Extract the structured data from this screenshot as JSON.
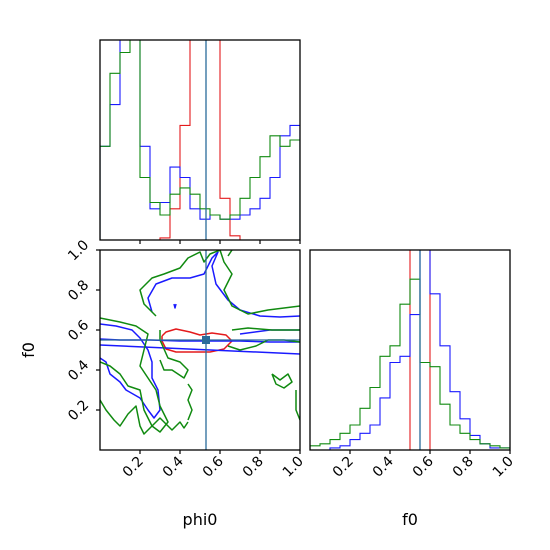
{
  "chart_data": {
    "type": "corner",
    "parameters": [
      "phi0",
      "f0"
    ],
    "truth": {
      "phi0": 0.53,
      "f0": 0.55
    },
    "colors": {
      "red": "#e41a1c",
      "blue": "#1a1aff",
      "green": "#108a10",
      "truth": "#2a6b9a"
    },
    "xlabel_phi0": "phi0",
    "xlabel_f0": "f0",
    "ylabel_f0": "f0",
    "range": [
      0.0,
      1.0
    ],
    "ticks": [
      0.2,
      0.4,
      0.6,
      0.8,
      1.0
    ],
    "tick_labels": [
      "0.2",
      "0.4",
      "0.6",
      "0.8",
      "1.0"
    ],
    "marginal_phi0": {
      "bin_edges": [
        0.0,
        0.05,
        0.1,
        0.15,
        0.2,
        0.25,
        0.3,
        0.35,
        0.4,
        0.45,
        0.5,
        0.55,
        0.6,
        0.65,
        0.7,
        0.75,
        0.8,
        0.85,
        0.9,
        0.95,
        1.0
      ],
      "series": [
        {
          "color": "red",
          "values": [
            0.0,
            0.0,
            0.0,
            0.0,
            0.0,
            0.0,
            0.01,
            0.15,
            0.55,
            1.05,
            1.05,
            1.05,
            0.2,
            0.02,
            0.0,
            0.0,
            0.0,
            0.0,
            0.0,
            0.0
          ]
        },
        {
          "color": "blue",
          "values": [
            0.45,
            0.65,
            1.05,
            1.05,
            0.45,
            0.15,
            0.18,
            0.35,
            0.3,
            0.15,
            0.1,
            0.12,
            0.1,
            0.1,
            0.12,
            0.15,
            0.2,
            0.3,
            0.5,
            0.55
          ]
        },
        {
          "color": "green",
          "values": [
            0.45,
            0.8,
            0.9,
            1.05,
            0.3,
            0.18,
            0.12,
            0.22,
            0.25,
            0.22,
            0.15,
            0.12,
            0.1,
            0.12,
            0.2,
            0.3,
            0.4,
            0.5,
            0.45,
            0.48
          ]
        }
      ]
    },
    "marginal_f0": {
      "bin_edges": [
        0.0,
        0.05,
        0.1,
        0.15,
        0.2,
        0.25,
        0.3,
        0.35,
        0.4,
        0.45,
        0.5,
        0.55,
        0.6,
        0.65,
        0.7,
        0.75,
        0.8,
        0.85,
        0.9,
        0.95,
        1.0
      ],
      "series": [
        {
          "color": "red",
          "values": [
            0.0,
            0.0,
            0.0,
            0.0,
            0.0,
            0.0,
            0.0,
            0.0,
            0.0,
            0.0,
            1.02,
            1.02,
            0.0,
            0.0,
            0.0,
            0.0,
            0.0,
            0.0,
            0.0,
            0.0
          ]
        },
        {
          "color": "blue",
          "values": [
            0.0,
            0.0,
            0.01,
            0.02,
            0.05,
            0.08,
            0.12,
            0.25,
            0.42,
            0.45,
            0.65,
            1.0,
            0.75,
            0.5,
            0.28,
            0.15,
            0.07,
            0.03,
            0.01,
            0.01
          ]
        },
        {
          "color": "green",
          "values": [
            0.02,
            0.03,
            0.05,
            0.08,
            0.12,
            0.2,
            0.3,
            0.45,
            0.5,
            0.7,
            0.82,
            0.42,
            0.4,
            0.22,
            0.12,
            0.08,
            0.05,
            0.03,
            0.02,
            0.01
          ]
        }
      ]
    },
    "joint_contours": [
      {
        "color": "red",
        "paths": [
          [
            [
              0.31,
              0.57
            ],
            [
              0.33,
              0.59
            ],
            [
              0.38,
              0.605
            ],
            [
              0.45,
              0.59
            ],
            [
              0.5,
              0.575
            ],
            [
              0.56,
              0.585
            ],
            [
              0.63,
              0.575
            ],
            [
              0.66,
              0.545
            ],
            [
              0.62,
              0.505
            ],
            [
              0.55,
              0.49
            ],
            [
              0.45,
              0.49
            ],
            [
              0.38,
              0.49
            ],
            [
              0.33,
              0.505
            ],
            [
              0.31,
              0.545
            ],
            [
              0.31,
              0.57
            ]
          ]
        ]
      },
      {
        "color": "blue",
        "paths": [
          [
            [
              0.0,
              0.555
            ],
            [
              0.1,
              0.55
            ],
            [
              0.25,
              0.55
            ],
            [
              0.4,
              0.545
            ],
            [
              0.55,
              0.545
            ],
            [
              0.7,
              0.545
            ],
            [
              0.85,
              0.54
            ],
            [
              1.0,
              0.54
            ]
          ],
          [
            [
              0.26,
              0.69
            ],
            [
              0.24,
              0.76
            ],
            [
              0.28,
              0.83
            ],
            [
              0.36,
              0.86
            ],
            [
              0.45,
              0.86
            ],
            [
              0.52,
              0.88
            ],
            [
              0.56,
              0.96
            ],
            [
              0.59,
              0.99
            ],
            [
              0.56,
              0.92
            ],
            [
              0.58,
              0.83
            ],
            [
              0.64,
              0.75
            ],
            [
              0.7,
              0.7
            ],
            [
              0.8,
              0.67
            ],
            [
              0.9,
              0.665
            ],
            [
              1.0,
              0.67
            ]
          ],
          [
            [
              1.0,
              0.6
            ],
            [
              0.85,
              0.6
            ],
            [
              0.7,
              0.58
            ]
          ],
          [
            [
              0.0,
              0.63
            ],
            [
              0.08,
              0.62
            ],
            [
              0.16,
              0.6
            ],
            [
              0.2,
              0.56
            ],
            [
              0.24,
              0.5
            ],
            [
              0.26,
              0.44
            ],
            [
              0.26,
              0.36
            ],
            [
              0.29,
              0.3
            ],
            [
              0.3,
              0.2
            ],
            [
              0.27,
              0.16
            ],
            [
              0.24,
              0.2
            ],
            [
              0.2,
              0.26
            ],
            [
              0.13,
              0.3
            ],
            [
              0.1,
              0.34
            ],
            [
              0.05,
              0.38
            ],
            [
              0.03,
              0.44
            ],
            [
              0.0,
              0.46
            ]
          ],
          [
            [
              0.37,
              0.73
            ],
            [
              0.375,
              0.71
            ],
            [
              0.38,
              0.73
            ]
          ],
          [
            [
              0.0,
              0.525
            ],
            [
              1.0,
              0.48
            ]
          ]
        ]
      },
      {
        "color": "green",
        "paths": [
          [
            [
              0.28,
              0.67
            ],
            [
              0.22,
              0.73
            ],
            [
              0.2,
              0.8
            ],
            [
              0.26,
              0.86
            ],
            [
              0.32,
              0.88
            ],
            [
              0.4,
              0.91
            ],
            [
              0.44,
              0.96
            ],
            [
              0.5,
              0.99
            ],
            [
              0.52,
              0.94
            ],
            [
              0.55,
              0.98
            ],
            [
              0.6,
              1.0
            ],
            [
              0.62,
              0.94
            ],
            [
              0.66,
              0.88
            ],
            [
              0.62,
              0.8
            ],
            [
              0.66,
              0.72
            ],
            [
              0.74,
              0.68
            ],
            [
              0.84,
              0.7
            ],
            [
              0.92,
              0.71
            ],
            [
              1.0,
              0.72
            ]
          ],
          [
            [
              0.64,
              0.97
            ],
            [
              0.66,
              1.0
            ]
          ],
          [
            [
              0.0,
              0.66
            ],
            [
              0.1,
              0.64
            ],
            [
              0.18,
              0.62
            ],
            [
              0.24,
              0.58
            ],
            [
              0.22,
              0.5
            ],
            [
              0.2,
              0.42
            ],
            [
              0.24,
              0.36
            ],
            [
              0.28,
              0.3
            ],
            [
              0.3,
              0.22
            ],
            [
              0.34,
              0.14
            ],
            [
              0.3,
              0.09
            ],
            [
              0.26,
              0.12
            ],
            [
              0.22,
              0.2
            ],
            [
              0.2,
              0.3
            ],
            [
              0.14,
              0.32
            ],
            [
              0.1,
              0.38
            ],
            [
              0.05,
              0.42
            ],
            [
              0.0,
              0.44
            ]
          ],
          [
            [
              0.0,
              0.25
            ],
            [
              0.03,
              0.2
            ],
            [
              0.07,
              0.15
            ],
            [
              0.1,
              0.12
            ],
            [
              0.14,
              0.18
            ],
            [
              0.18,
              0.22
            ],
            [
              0.2,
              0.12
            ],
            [
              0.22,
              0.08
            ],
            [
              0.26,
              0.12
            ],
            [
              0.3,
              0.16
            ],
            [
              0.36,
              0.1
            ],
            [
              0.4,
              0.14
            ],
            [
              0.42,
              0.11
            ],
            [
              0.44,
              0.14
            ]
          ],
          [
            [
              0.3,
              0.6
            ],
            [
              0.3,
              0.55
            ],
            [
              0.34,
              0.46
            ],
            [
              0.4,
              0.44
            ],
            [
              0.44,
              0.4
            ],
            [
              0.42,
              0.36
            ],
            [
              0.36,
              0.4
            ],
            [
              0.32,
              0.4
            ],
            [
              0.3,
              0.45
            ]
          ],
          [
            [
              0.44,
              0.33
            ],
            [
              0.46,
              0.3
            ],
            [
              0.44,
              0.25
            ],
            [
              0.46,
              0.2
            ],
            [
              0.44,
              0.15
            ]
          ],
          [
            [
              0.64,
              0.52
            ],
            [
              0.7,
              0.5
            ],
            [
              0.78,
              0.52
            ],
            [
              0.84,
              0.55
            ],
            [
              0.92,
              0.55
            ],
            [
              1.0,
              0.54
            ]
          ],
          [
            [
              0.66,
              0.6
            ],
            [
              0.74,
              0.61
            ],
            [
              0.86,
              0.6
            ],
            [
              0.94,
              0.6
            ],
            [
              1.0,
              0.6
            ]
          ],
          [
            [
              0.86,
              0.38
            ],
            [
              0.9,
              0.35
            ],
            [
              0.94,
              0.38
            ],
            [
              0.96,
              0.34
            ],
            [
              0.92,
              0.31
            ],
            [
              0.88,
              0.33
            ],
            [
              0.86,
              0.38
            ]
          ],
          [
            [
              0.98,
              0.3
            ],
            [
              0.98,
              0.2
            ],
            [
              1.0,
              0.15
            ]
          ]
        ]
      }
    ]
  }
}
